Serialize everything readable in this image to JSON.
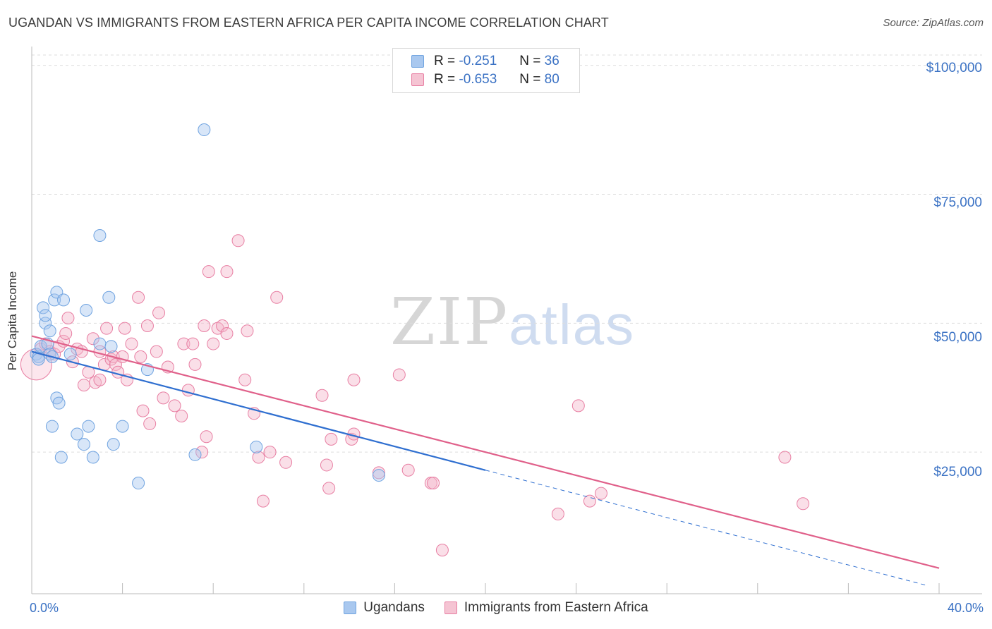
{
  "title": "UGANDAN VS IMMIGRANTS FROM EASTERN AFRICA PER CAPITA INCOME CORRELATION CHART",
  "source": "Source: ZipAtlas.com",
  "watermark": {
    "part1": "ZIP",
    "part2": "atlas"
  },
  "colors": {
    "blue": "#6fa3e0",
    "blue_fill": "#a9c8ef",
    "blue_line": "#2f6fd0",
    "pink": "#e87fa3",
    "pink_fill": "#f5b8cb",
    "pink_line": "#e0608a",
    "grid": "#dddddd",
    "tick_text": "#3b72c4"
  },
  "legend": {
    "rows": [
      {
        "r_label": "R =",
        "r_value": "-0.251",
        "n_label": "N =",
        "n_value": "36"
      },
      {
        "r_label": "R =",
        "r_value": "-0.653",
        "n_label": "N =",
        "n_value": "80"
      }
    ]
  },
  "bottom_legend": [
    "Ugandans",
    "Immigrants from Eastern Africa"
  ],
  "chart_data": {
    "type": "scatter",
    "title": "UGANDAN VS IMMIGRANTS FROM EASTERN AFRICA PER CAPITA INCOME CORRELATION CHART",
    "xlabel": "",
    "ylabel": "Per Capita Income",
    "xlim": [
      0,
      40
    ],
    "ylim": [
      0,
      102000
    ],
    "x_tick_labels": [
      "0.0%",
      "40.0%"
    ],
    "y_ticks": [
      25000,
      50000,
      75000,
      100000
    ],
    "y_tick_labels": [
      "$25,000",
      "$50,000",
      "$75,000",
      "$100,000"
    ],
    "grid": true,
    "series": [
      {
        "name": "Ugandans",
        "points": [
          [
            0.2,
            44000
          ],
          [
            0.3,
            43500
          ],
          [
            0.4,
            45500
          ],
          [
            0.5,
            53000
          ],
          [
            0.6,
            50000
          ],
          [
            0.6,
            51500
          ],
          [
            0.7,
            46000
          ],
          [
            0.8,
            48500
          ],
          [
            0.8,
            44000
          ],
          [
            0.9,
            30000
          ],
          [
            1.0,
            54500
          ],
          [
            1.1,
            35500
          ],
          [
            1.1,
            56000
          ],
          [
            1.2,
            34500
          ],
          [
            1.3,
            24000
          ],
          [
            1.4,
            54500
          ],
          [
            1.7,
            44000
          ],
          [
            2.0,
            28500
          ],
          [
            2.3,
            26500
          ],
          [
            2.4,
            52500
          ],
          [
            2.5,
            30000
          ],
          [
            2.7,
            24000
          ],
          [
            3.0,
            46000
          ],
          [
            3.0,
            67000
          ],
          [
            3.4,
            55000
          ],
          [
            3.5,
            45500
          ],
          [
            3.6,
            26500
          ],
          [
            4.0,
            30000
          ],
          [
            4.7,
            19000
          ],
          [
            5.1,
            41000
          ],
          [
            7.2,
            24500
          ],
          [
            7.6,
            87500
          ],
          [
            9.9,
            26000
          ],
          [
            15.3,
            20500
          ],
          [
            0.3,
            43000
          ],
          [
            0.9,
            43500
          ]
        ],
        "trend": {
          "x": [
            0,
            20
          ],
          "y": [
            44500,
            21500
          ]
        },
        "trend_ext": {
          "x": [
            20,
            39.5
          ],
          "y": [
            21500,
            -900
          ]
        }
      },
      {
        "name": "Immigrants from Eastern Africa",
        "points": [
          [
            0.2,
            42000
          ],
          [
            0.4,
            45000
          ],
          [
            0.6,
            46000
          ],
          [
            0.8,
            44500
          ],
          [
            1.0,
            44000
          ],
          [
            1.2,
            45500
          ],
          [
            1.4,
            46500
          ],
          [
            1.5,
            48000
          ],
          [
            1.6,
            51000
          ],
          [
            1.8,
            42500
          ],
          [
            2.0,
            45000
          ],
          [
            2.2,
            44500
          ],
          [
            2.3,
            38000
          ],
          [
            2.5,
            40500
          ],
          [
            2.7,
            47000
          ],
          [
            2.8,
            38500
          ],
          [
            3.0,
            44500
          ],
          [
            3.0,
            39000
          ],
          [
            3.2,
            42000
          ],
          [
            3.3,
            49000
          ],
          [
            3.5,
            43000
          ],
          [
            3.6,
            43500
          ],
          [
            3.7,
            42000
          ],
          [
            3.8,
            40500
          ],
          [
            4.0,
            43500
          ],
          [
            4.1,
            49000
          ],
          [
            4.2,
            39000
          ],
          [
            4.4,
            46000
          ],
          [
            4.7,
            55000
          ],
          [
            4.8,
            43500
          ],
          [
            4.9,
            33000
          ],
          [
            5.1,
            49500
          ],
          [
            5.2,
            30500
          ],
          [
            5.5,
            44500
          ],
          [
            5.6,
            52000
          ],
          [
            5.8,
            35500
          ],
          [
            6.0,
            41500
          ],
          [
            6.3,
            34000
          ],
          [
            6.6,
            32000
          ],
          [
            6.7,
            46000
          ],
          [
            6.9,
            37000
          ],
          [
            7.1,
            46000
          ],
          [
            7.2,
            42000
          ],
          [
            7.5,
            25000
          ],
          [
            7.6,
            49500
          ],
          [
            7.7,
            28000
          ],
          [
            7.8,
            60000
          ],
          [
            8.0,
            46000
          ],
          [
            8.2,
            49000
          ],
          [
            8.4,
            49500
          ],
          [
            8.6,
            48000
          ],
          [
            8.6,
            60000
          ],
          [
            9.1,
            66000
          ],
          [
            9.4,
            39000
          ],
          [
            9.5,
            48500
          ],
          [
            9.8,
            32500
          ],
          [
            10.0,
            24000
          ],
          [
            10.2,
            15500
          ],
          [
            10.5,
            25000
          ],
          [
            10.8,
            55000
          ],
          [
            11.2,
            23000
          ],
          [
            12.8,
            36000
          ],
          [
            13.0,
            22500
          ],
          [
            13.1,
            18000
          ],
          [
            13.2,
            27500
          ],
          [
            14.1,
            27500
          ],
          [
            14.2,
            28500
          ],
          [
            14.2,
            39000
          ],
          [
            15.3,
            21000
          ],
          [
            16.2,
            40000
          ],
          [
            16.6,
            21500
          ],
          [
            17.6,
            19000
          ],
          [
            17.7,
            19000
          ],
          [
            18.1,
            6000
          ],
          [
            23.2,
            13000
          ],
          [
            24.1,
            34000
          ],
          [
            24.6,
            15500
          ],
          [
            25.1,
            17000
          ],
          [
            33.2,
            24000
          ],
          [
            34.0,
            15000
          ]
        ],
        "trend": {
          "x": [
            0,
            40
          ],
          "y": [
            47500,
            2500
          ]
        }
      }
    ]
  }
}
